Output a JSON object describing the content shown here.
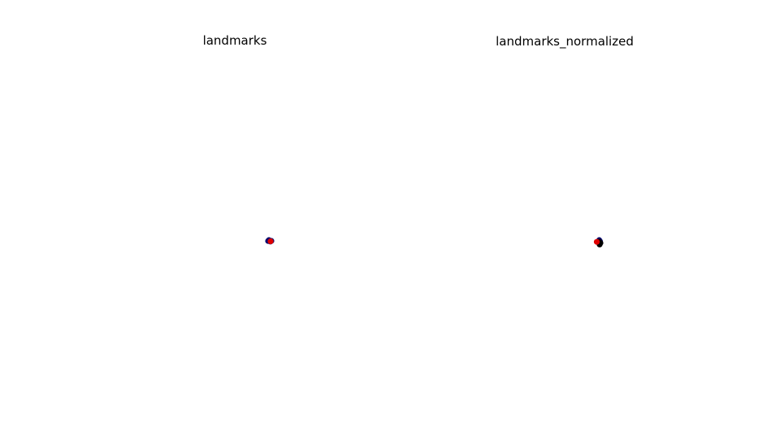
{
  "chart_data": [
    {
      "type": "scatter",
      "title": "landmarks",
      "axes_visible": false,
      "grid": false,
      "series": [
        {
          "color": "#0a0a6e",
          "points": [
            {
              "x": 0.0,
              "y": 0.03
            },
            {
              "x": 0.2,
              "y": 0.0
            },
            {
              "x": -0.2,
              "y": -0.01
            },
            {
              "x": 0.08,
              "y": -0.08
            },
            {
              "x": -0.1,
              "y": 0.1
            }
          ]
        },
        {
          "color": "#e00000",
          "points": [
            {
              "x": 0.1,
              "y": -0.05
            }
          ]
        }
      ]
    },
    {
      "type": "scatter",
      "title": "landmarks_normalized",
      "axes_visible": false,
      "grid": false,
      "series": [
        {
          "color": "#0a0a6e",
          "points": [
            {
              "x": 0.25,
              "y": 0.2
            },
            {
              "x": 0.35,
              "y": 0.05
            },
            {
              "x": 0.2,
              "y": -0.1
            }
          ]
        },
        {
          "color": "#000000",
          "points": [
            {
              "x": 0.3,
              "y": -0.35
            },
            {
              "x": 0.4,
              "y": -0.15
            },
            {
              "x": 0.25,
              "y": 0.0
            }
          ]
        },
        {
          "color": "#e00000",
          "points": [
            {
              "x": -0.05,
              "y": -0.02
            }
          ]
        }
      ]
    }
  ]
}
